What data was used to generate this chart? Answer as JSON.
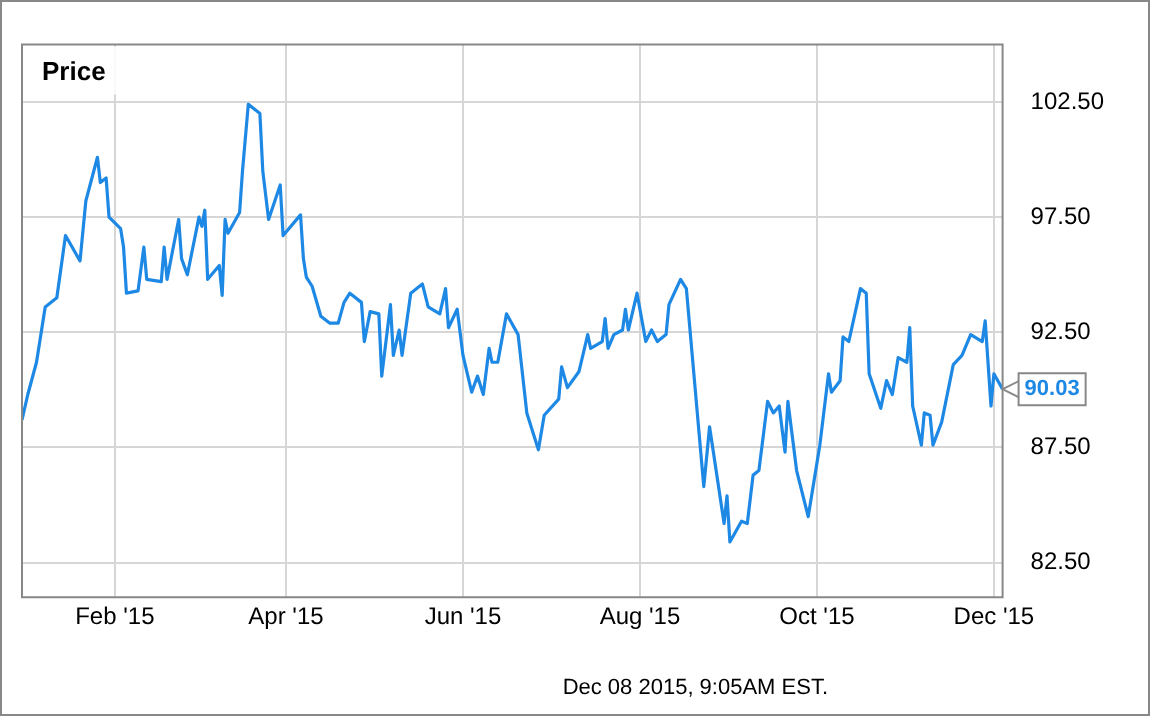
{
  "chart_data": {
    "type": "line",
    "title": "Price",
    "x": [
      "2014-12-31",
      "2015-01-02",
      "2015-01-05",
      "2015-01-08",
      "2015-01-12",
      "2015-01-15",
      "2015-01-20",
      "2015-01-22",
      "2015-01-26",
      "2015-01-27",
      "2015-01-29",
      "2015-01-30",
      "2015-02-03",
      "2015-02-04",
      "2015-02-05",
      "2015-02-09",
      "2015-02-11",
      "2015-02-12",
      "2015-02-17",
      "2015-02-18",
      "2015-02-19",
      "2015-02-23",
      "2015-02-24",
      "2015-02-26",
      "2015-03-02",
      "2015-03-03",
      "2015-03-04",
      "2015-03-05",
      "2015-03-09",
      "2015-03-10",
      "2015-03-11",
      "2015-03-12",
      "2015-03-16",
      "2015-03-17",
      "2015-03-19",
      "2015-03-23",
      "2015-03-24",
      "2015-03-26",
      "2015-03-30",
      "2015-03-31",
      "2015-04-06",
      "2015-04-07",
      "2015-04-08",
      "2015-04-10",
      "2015-04-13",
      "2015-04-16",
      "2015-04-19",
      "2015-04-21",
      "2015-04-23",
      "2015-04-27",
      "2015-04-28",
      "2015-04-30",
      "2015-05-03",
      "2015-05-04",
      "2015-05-07",
      "2015-05-08",
      "2015-05-10",
      "2015-05-11",
      "2015-05-14",
      "2015-05-18",
      "2015-05-20",
      "2015-05-24",
      "2015-05-26",
      "2015-05-27",
      "2015-05-30",
      "2015-06-01",
      "2015-06-04",
      "2015-06-06",
      "2015-06-08",
      "2015-06-10",
      "2015-06-11",
      "2015-06-13",
      "2015-06-16",
      "2015-06-20",
      "2015-06-23",
      "2015-06-27",
      "2015-06-29",
      "2015-07-04",
      "2015-07-05",
      "2015-07-07",
      "2015-07-11",
      "2015-07-14",
      "2015-07-15",
      "2015-07-19",
      "2015-07-20",
      "2015-07-21",
      "2015-07-23",
      "2015-07-26",
      "2015-07-27",
      "2015-07-28",
      "2015-07-31",
      "2015-08-03",
      "2015-08-05",
      "2015-08-07",
      "2015-08-10",
      "2015-08-11",
      "2015-08-15",
      "2015-08-17",
      "2015-08-23",
      "2015-08-25",
      "2015-08-30",
      "2015-08-31",
      "2015-09-01",
      "2015-09-05",
      "2015-09-07",
      "2015-09-09",
      "2015-09-11",
      "2015-09-14",
      "2015-09-16",
      "2015-09-18",
      "2015-09-20",
      "2015-09-21",
      "2015-09-24",
      "2015-09-28",
      "2015-10-02",
      "2015-10-05",
      "2015-10-06",
      "2015-10-09",
      "2015-10-10",
      "2015-10-12",
      "2015-10-16",
      "2015-10-18",
      "2015-10-19",
      "2015-10-23",
      "2015-10-25",
      "2015-10-27",
      "2015-10-29",
      "2015-11-01",
      "2015-11-02",
      "2015-11-03",
      "2015-11-06",
      "2015-11-07",
      "2015-11-09",
      "2015-11-10",
      "2015-11-13",
      "2015-11-17",
      "2015-11-20",
      "2015-11-23",
      "2015-11-27",
      "2015-11-28",
      "2015-11-30",
      "2015-12-01",
      "2015-12-04"
    ],
    "series": [
      {
        "color": "#1e88e5",
        "values": [
          88.7,
          89.8,
          91.2,
          93.6,
          94.0,
          96.7,
          95.6,
          98.2,
          100.1,
          99.0,
          99.2,
          97.5,
          97.0,
          96.2,
          94.2,
          94.3,
          96.2,
          94.8,
          94.7,
          96.2,
          94.8,
          97.4,
          95.7,
          95.0,
          97.5,
          97.1,
          97.8,
          94.8,
          95.4,
          94.1,
          97.4,
          96.8,
          97.7,
          99.5,
          102.4,
          102.0,
          99.5,
          97.4,
          98.9,
          96.7,
          97.6,
          95.7,
          94.9,
          94.5,
          93.2,
          92.9,
          92.9,
          93.8,
          94.2,
          93.8,
          92.1,
          93.4,
          93.3,
          90.6,
          93.7,
          91.5,
          92.6,
          91.5,
          94.2,
          94.6,
          93.6,
          93.3,
          94.4,
          92.7,
          93.5,
          91.5,
          89.9,
          90.6,
          89.8,
          91.8,
          91.2,
          91.2,
          93.3,
          92.4,
          89.0,
          87.4,
          88.9,
          89.6,
          91.0,
          90.1,
          90.8,
          92.4,
          91.8,
          92.1,
          93.1,
          91.8,
          92.4,
          92.6,
          93.5,
          92.6,
          94.2,
          92.1,
          92.6,
          92.1,
          92.4,
          93.7,
          94.8,
          94.4,
          85.8,
          88.4,
          84.2,
          85.4,
          83.4,
          84.3,
          84.2,
          86.3,
          86.5,
          89.5,
          89.0,
          89.3,
          87.3,
          89.5,
          86.5,
          84.5,
          87.6,
          90.7,
          89.9,
          90.4,
          92.3,
          92.1,
          94.4,
          94.2,
          90.7,
          89.2,
          90.4,
          89.8,
          91.4,
          91.2,
          92.7,
          89.3,
          87.6,
          89.0,
          88.9,
          87.6,
          88.6,
          91.1,
          91.5,
          92.4,
          92.1,
          93.0,
          89.3,
          90.7,
          90.03
        ]
      }
    ],
    "xlim": [
      "2014-12-31",
      "2015-12-04"
    ],
    "xticks": [
      {
        "value": "2015-02-01",
        "label": "Feb '15"
      },
      {
        "value": "2015-04-01",
        "label": "Apr '15"
      },
      {
        "value": "2015-06-01",
        "label": "Jun '15"
      },
      {
        "value": "2015-08-01",
        "label": "Aug '15"
      },
      {
        "value": "2015-10-01",
        "label": "Oct '15"
      },
      {
        "value": "2015-12-01",
        "label": "Dec '15"
      }
    ],
    "ylim": [
      81,
      105
    ],
    "yticks": [
      {
        "value": 82.5,
        "label": "82.50"
      },
      {
        "value": 87.5,
        "label": "87.50"
      },
      {
        "value": 92.5,
        "label": "92.50"
      },
      {
        "value": 97.5,
        "label": "97.50"
      },
      {
        "value": 102.5,
        "label": "102.50"
      }
    ],
    "grid": true,
    "legend": false,
    "marker": "none",
    "line_style": "solid",
    "annotations": [
      {
        "text": "90.03",
        "x": "2015-12-04",
        "y": 90.03
      },
      "Dec 08 2015, 9:05AM EST."
    ]
  }
}
